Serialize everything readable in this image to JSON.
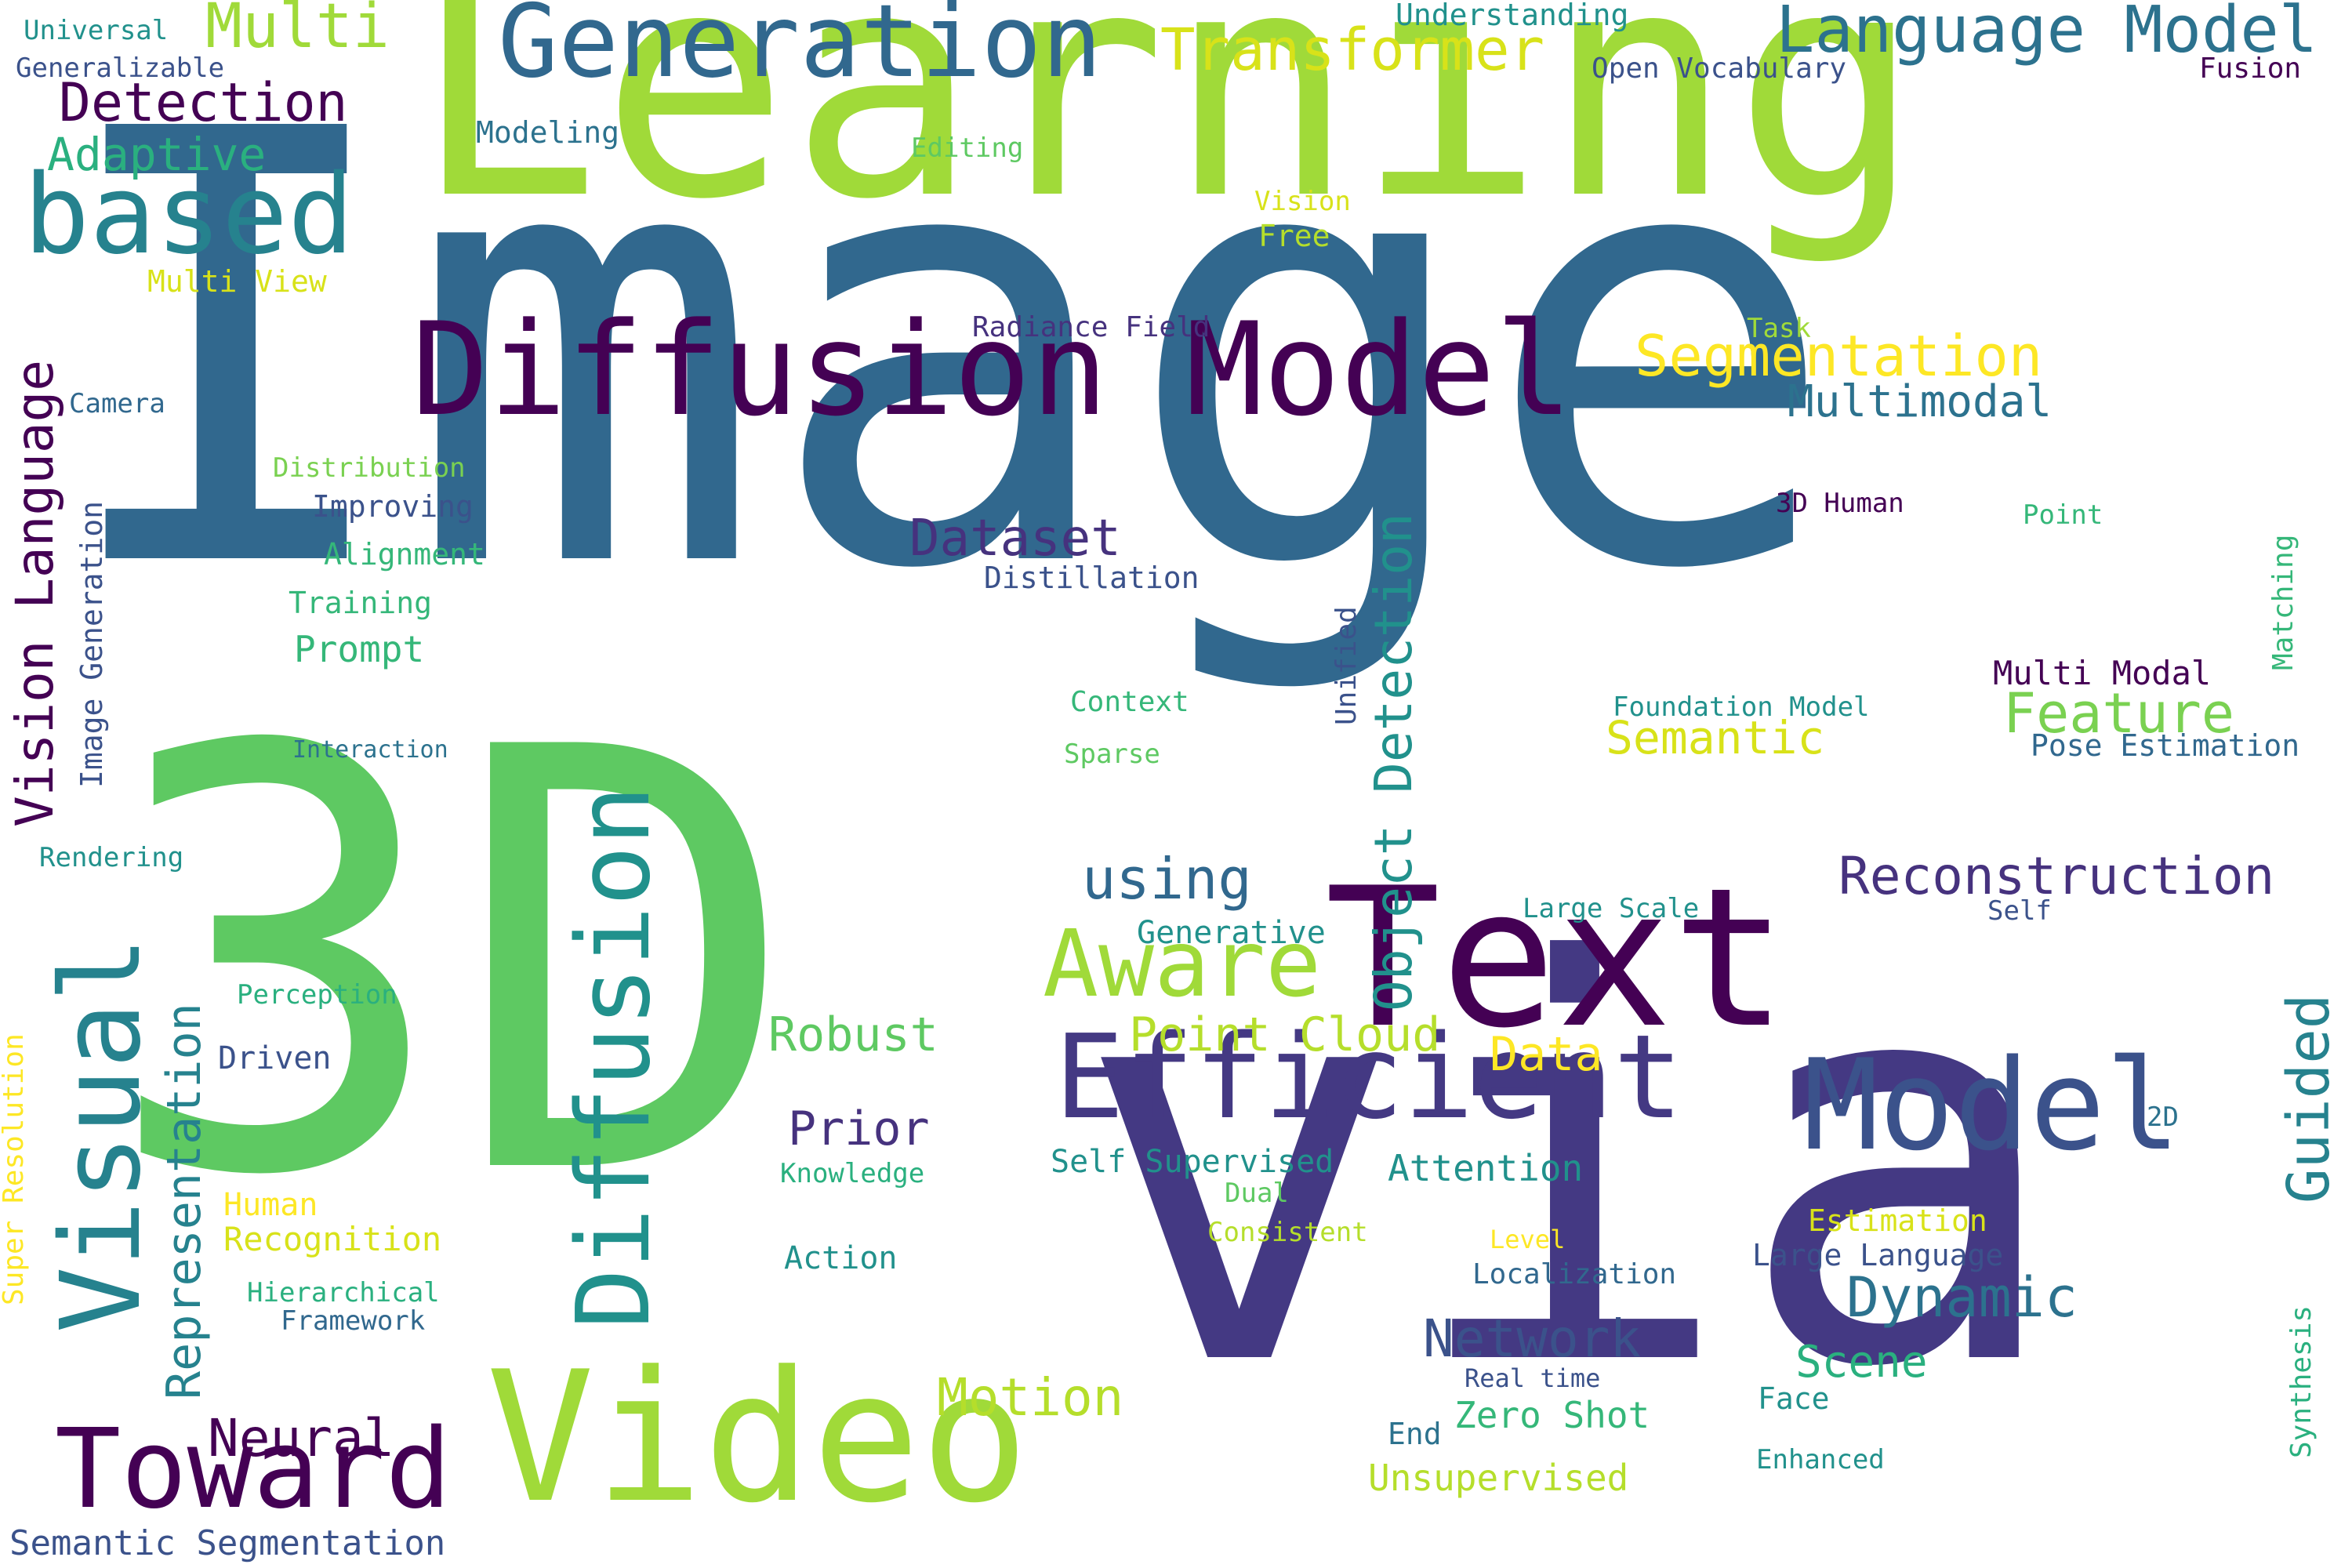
{
  "palette": {
    "lime": "#a0da39",
    "green": "#5ec962",
    "teal": "#21918c",
    "blue": "#31688e",
    "indigo": "#443983",
    "purple": "#440154",
    "cyan": "#26828e",
    "mint": "#2ab07f",
    "yellow": "#fde725"
  },
  "words": {
    "image": "Image",
    "learning": "Learning",
    "three_d": "3D",
    "via": "via",
    "text": "Text",
    "video": "Video",
    "diffusion_model": "Diffusion Model",
    "generation": "Generation",
    "language_model": "Language Model",
    "transformer": "Transformer",
    "understanding": "Understanding",
    "open_vocabulary": "Open Vocabulary",
    "fusion": "Fusion",
    "universal": "Universal",
    "multi": "Multi",
    "generalizable": "Generalizable",
    "detection": "Detection",
    "adaptive": "Adaptive",
    "based": "based",
    "modeling": "Modeling",
    "editing": "Editing",
    "vision": "Vision",
    "free": "Free",
    "multi_view": "Multi View",
    "radiance_field": "Radiance Field",
    "task": "Task",
    "segmentation": "Segmentation",
    "multimodal": "Multimodal",
    "camera": "Camera",
    "distribution": "Distribution",
    "improving": "Improving",
    "alignment": "Alignment",
    "training": "Training",
    "prompt": "Prompt",
    "interaction": "Interaction",
    "dataset": "Dataset",
    "distillation": "Distillation",
    "three_d_human": "3D Human",
    "point": "Point",
    "matching": "Matching",
    "unified": "Unified",
    "context": "Context",
    "sparse": "Sparse",
    "foundation_model": "Foundation Model",
    "multi_modal": "Multi Modal",
    "feature": "Feature",
    "semantic": "Semantic",
    "pose_estimation": "Pose Estimation",
    "rendering": "Rendering",
    "using": "using",
    "reconstruction": "Reconstruction",
    "large_scale": "Large Scale",
    "self": "Self",
    "generative": "Generative",
    "aware": "Aware",
    "perception": "Perception",
    "driven": "Driven",
    "robust": "Robust",
    "point_cloud": "Point Cloud",
    "data": "Data",
    "efficient": "Efficient",
    "model": "Model",
    "prior": "Prior",
    "two_d": "2D",
    "knowledge": "Knowledge",
    "self_supervised": "Self Supervised",
    "attention": "Attention",
    "human": "Human",
    "recognition": "Recognition",
    "dual": "Dual",
    "estimation": "Estimation",
    "consistent": "Consistent",
    "level": "Level",
    "large_language": "Large Language",
    "action": "Action",
    "localization": "Localization",
    "hierarchical": "Hierarchical",
    "framework": "Framework",
    "dynamic": "Dynamic",
    "network": "Network",
    "real_time": "Real time",
    "scene": "Scene",
    "neural": "Neural",
    "motion": "Motion",
    "face": "Face",
    "end": "End",
    "zero_shot": "Zero Shot",
    "toward": "Toward",
    "enhanced": "Enhanced",
    "unsupervised": "Unsupervised",
    "semantic_segmentation": "Semantic Segmentation",
    "vision_language": "Vision Language",
    "image_generation": "Image Generation",
    "visual": "Visual",
    "representation": "Representation",
    "super_resolution": "Super Resolution",
    "diffusion": "Diffusion",
    "object_detection": "Object Detection",
    "guided": "Guided",
    "synthesis": "Synthesis"
  }
}
